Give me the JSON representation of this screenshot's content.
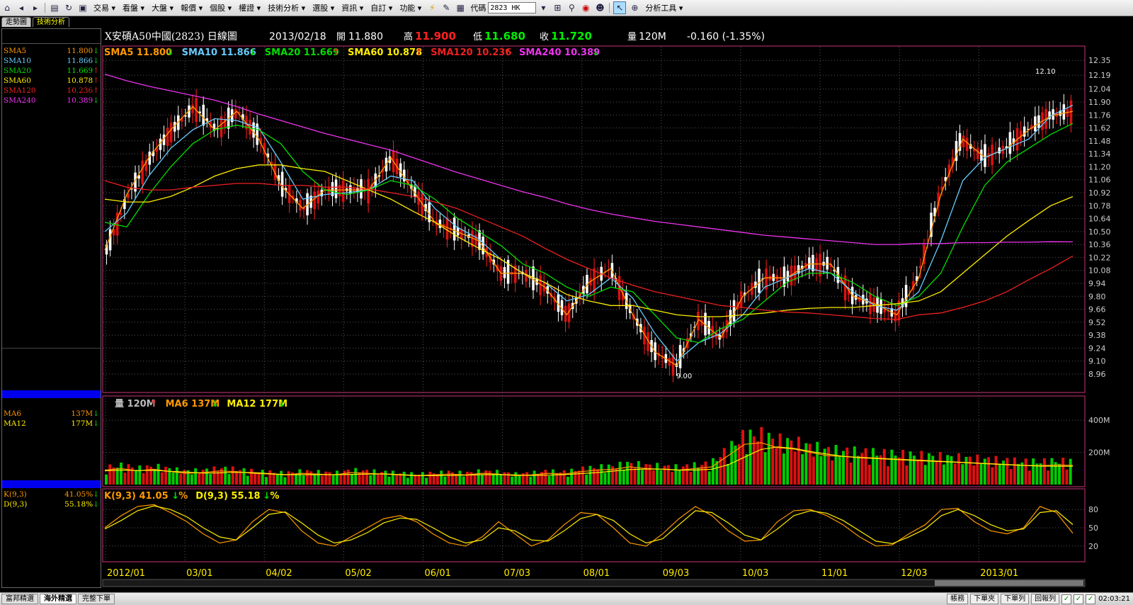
{
  "menu": {
    "items": [
      "交易",
      "看盤",
      "大盤",
      "報價",
      "個股",
      "權證",
      "技術分析",
      "選股",
      "資訊",
      "自訂",
      "功能"
    ],
    "code_label": "代碼",
    "code_value": "2823 HK",
    "tools_label": "分析工具"
  },
  "window_tabs": [
    "走勢圖",
    "技術分析"
  ],
  "header": {
    "title": "X安碩A50中國(2823)  日線圖",
    "date": "2013/02/18",
    "open_label": "開",
    "open": "11.880",
    "high_label": "高",
    "high": "11.900",
    "low_label": "低",
    "low": "11.680",
    "close_label": "收",
    "close": "11.720",
    "volume_label": "量",
    "volume": "120M",
    "change": "-0.160 (-1.35%)"
  },
  "left_panel": {
    "price_indicators": [
      {
        "name": "SMA5",
        "value": "11.800",
        "dir": "down",
        "color": "#ff9900"
      },
      {
        "name": "SMA10",
        "value": "11.866",
        "dir": "down",
        "color": "#66ccff"
      },
      {
        "name": "SMA20",
        "value": "11.669",
        "dir": "up",
        "color": "#00dd00"
      },
      {
        "name": "SMA60",
        "value": "10.878",
        "dir": "up",
        "color": "#ffee00"
      },
      {
        "name": "SMA120",
        "value": "10.236",
        "dir": "up",
        "color": "#ee2020"
      },
      {
        "name": "SMA240",
        "value": "10.389",
        "dir": "down",
        "color": "#ee33ee"
      }
    ],
    "volume_indicators": [
      {
        "name": "MA6",
        "value": "137M",
        "dir": "down",
        "color": "#ff9900"
      },
      {
        "name": "MA12",
        "value": "177M",
        "dir": "down",
        "color": "#ffee00"
      }
    ],
    "kd_indicators": [
      {
        "name": "K(9,3)",
        "value": "41.05%",
        "dir": "down",
        "color": "#ff9900"
      },
      {
        "name": "D(9,3)",
        "value": "55.18%",
        "dir": "down",
        "color": "#ffee00"
      }
    ]
  },
  "legend": {
    "price": [
      {
        "text": "SMA5 11.800",
        "dir": "down",
        "color": "#ff9900"
      },
      {
        "text": "SMA10 11.866",
        "dir": "down",
        "color": "#66ccff"
      },
      {
        "text": "SMA20 11.669",
        "dir": "up",
        "color": "#00dd00"
      },
      {
        "text": "SMA60 10.878",
        "dir": "up",
        "color": "#ffee00"
      },
      {
        "text": "SMA120 10.236",
        "dir": "up",
        "color": "#ee2020"
      },
      {
        "text": "SMA240 10.389",
        "dir": "down",
        "color": "#ee33ee"
      }
    ],
    "volume": [
      {
        "text": "量 120M",
        "dir": "up",
        "color": "#bbbbbb"
      },
      {
        "text": "MA6 137M",
        "dir": "down",
        "color": "#ff9900"
      },
      {
        "text": "MA12 177M",
        "dir": "down",
        "color": "#ffee00"
      }
    ],
    "kd": [
      {
        "text": "K(9,3) 41.05",
        "dir": "down",
        "suffix": "%",
        "color": "#ff9900"
      },
      {
        "text": "D(9,3) 55.18",
        "dir": "down",
        "suffix": "%",
        "color": "#ffee00"
      }
    ]
  },
  "chart_data": [
    {
      "type": "line",
      "panel": "price",
      "ylim": [
        8.96,
        12.39
      ],
      "y_ticks": [
        "12.35",
        "12.19",
        "12.04",
        "11.90",
        "11.76",
        "11.62",
        "11.48",
        "11.34",
        "11.20",
        "11.06",
        "10.92",
        "10.78",
        "10.64",
        "10.50",
        "10.36",
        "10.22",
        "10.08",
        "9.94",
        "9.80",
        "9.66",
        "9.52",
        "9.38",
        "9.24",
        "9.10",
        "8.96"
      ],
      "x_ticks": [
        "2012/01",
        "03/01",
        "04/02",
        "05/02",
        "06/01",
        "07/03",
        "08/01",
        "09/03",
        "10/03",
        "11/01",
        "12/03",
        "2013/01"
      ],
      "annotations": [
        {
          "text": "12.10",
          "near": "high"
        },
        {
          "text": "9.00",
          "near": "low"
        }
      ],
      "series": [
        {
          "name": "SMA5",
          "color": "#ff9900",
          "values": [
            10.3,
            10.9,
            11.3,
            11.6,
            11.85,
            11.6,
            11.8,
            11.5,
            11.0,
            10.75,
            10.95,
            10.95,
            10.95,
            11.3,
            10.95,
            10.6,
            10.5,
            10.4,
            10.05,
            10.05,
            9.9,
            9.6,
            9.95,
            10.1,
            9.6,
            9.2,
            9.05,
            9.55,
            9.35,
            9.8,
            10.0,
            10.0,
            10.15,
            10.15,
            9.8,
            9.72,
            9.6,
            10.0,
            10.9,
            11.5,
            11.3,
            11.4,
            11.6,
            11.75,
            11.8
          ]
        },
        {
          "name": "SMA10",
          "color": "#66ccff",
          "values": [
            10.5,
            10.7,
            11.1,
            11.4,
            11.6,
            11.72,
            11.7,
            11.62,
            11.25,
            10.85,
            10.9,
            10.92,
            10.95,
            11.1,
            11.05,
            10.75,
            10.55,
            10.42,
            10.2,
            10.05,
            9.95,
            9.75,
            9.82,
            10.0,
            9.78,
            9.4,
            9.1,
            9.3,
            9.4,
            9.6,
            9.9,
            10.0,
            10.1,
            10.05,
            9.85,
            9.7,
            9.65,
            9.85,
            10.4,
            11.05,
            11.3,
            11.4,
            11.5,
            11.75,
            11.866
          ]
        },
        {
          "name": "SMA20",
          "color": "#00dd00",
          "values": [
            10.6,
            10.55,
            10.9,
            11.2,
            11.45,
            11.6,
            11.65,
            11.6,
            11.45,
            11.15,
            10.95,
            10.9,
            10.95,
            11.05,
            11.0,
            10.85,
            10.65,
            10.5,
            10.35,
            10.15,
            10.05,
            9.9,
            9.8,
            9.9,
            9.85,
            9.6,
            9.35,
            9.3,
            9.45,
            9.55,
            9.75,
            9.95,
            10.05,
            10.05,
            9.95,
            9.8,
            9.7,
            9.8,
            10.05,
            10.55,
            11.0,
            11.25,
            11.4,
            11.55,
            11.669
          ]
        },
        {
          "name": "SMA60",
          "color": "#ffee00",
          "values": [
            10.85,
            10.82,
            10.82,
            10.88,
            10.98,
            11.1,
            11.18,
            11.22,
            11.22,
            11.18,
            11.15,
            11.05,
            10.95,
            10.85,
            10.72,
            10.6,
            10.45,
            10.32,
            10.2,
            10.05,
            9.95,
            9.82,
            9.75,
            9.7,
            9.7,
            9.65,
            9.6,
            9.58,
            9.58,
            9.6,
            9.62,
            9.65,
            9.67,
            9.68,
            9.68,
            9.7,
            9.72,
            9.75,
            9.85,
            10.05,
            10.25,
            10.45,
            10.62,
            10.78,
            10.878
          ]
        },
        {
          "name": "SMA120",
          "color": "#ee2020",
          "values": [
            11.05,
            10.98,
            10.95,
            10.95,
            10.98,
            11.0,
            11.02,
            11.02,
            11.0,
            11.0,
            10.98,
            10.98,
            10.96,
            10.92,
            10.88,
            10.82,
            10.75,
            10.65,
            10.55,
            10.45,
            10.32,
            10.2,
            10.1,
            10.0,
            9.92,
            9.85,
            9.8,
            9.75,
            9.7,
            9.68,
            9.65,
            9.63,
            9.62,
            9.6,
            9.58,
            9.56,
            9.55,
            9.6,
            9.62,
            9.68,
            9.75,
            9.85,
            9.98,
            10.1,
            10.236
          ]
        },
        {
          "name": "SMA240",
          "color": "#ee33ee",
          "values": [
            12.2,
            12.13,
            12.07,
            12.02,
            11.97,
            11.92,
            11.85,
            11.77,
            11.7,
            11.63,
            11.56,
            11.5,
            11.44,
            11.38,
            11.3,
            11.22,
            11.14,
            11.07,
            11.0,
            10.93,
            10.87,
            10.8,
            10.74,
            10.69,
            10.65,
            10.61,
            10.58,
            10.55,
            10.52,
            10.49,
            10.46,
            10.44,
            10.42,
            10.4,
            10.38,
            10.36,
            10.36,
            10.37,
            10.37,
            10.38,
            10.38,
            10.385,
            10.385,
            10.39,
            10.389
          ]
        }
      ]
    },
    {
      "type": "bar",
      "panel": "volume",
      "y_ticks": [
        "400M",
        "200M"
      ],
      "ylim": [
        0,
        480
      ],
      "values": [
        90,
        100,
        85,
        95,
        80,
        70,
        75,
        85,
        80,
        70,
        65,
        60,
        70,
        65,
        60,
        75,
        70,
        65,
        60,
        55,
        60,
        65,
        60,
        70,
        65,
        55,
        60,
        70,
        65,
        80,
        90,
        95,
        110,
        100,
        95,
        90,
        100,
        110,
        180,
        250,
        260,
        230,
        220,
        200,
        180,
        175,
        170,
        165,
        160,
        155,
        150,
        145,
        140,
        135,
        130,
        125,
        120,
        118,
        122,
        120
      ]
    },
    {
      "type": "line",
      "panel": "kd",
      "ylim": [
        0,
        100
      ],
      "y_ticks": [
        "80",
        "50",
        "20"
      ],
      "series": [
        {
          "name": "K(9,3)",
          "color": "#ff9900",
          "values": [
            50,
            70,
            85,
            88,
            75,
            60,
            40,
            25,
            30,
            60,
            80,
            75,
            45,
            25,
            20,
            35,
            50,
            65,
            70,
            60,
            40,
            25,
            20,
            35,
            60,
            40,
            20,
            30,
            55,
            75,
            72,
            50,
            25,
            20,
            40,
            65,
            85,
            70,
            45,
            28,
            30,
            60,
            78,
            80,
            70,
            55,
            35,
            20,
            22,
            40,
            55,
            80,
            82,
            60,
            45,
            40,
            50,
            85,
            75,
            41.05
          ]
        },
        {
          "name": "D(9,3)",
          "color": "#ffee00",
          "values": [
            48,
            62,
            78,
            86,
            80,
            68,
            50,
            35,
            30,
            50,
            72,
            76,
            58,
            38,
            25,
            30,
            42,
            58,
            66,
            64,
            50,
            35,
            25,
            30,
            50,
            45,
            30,
            28,
            45,
            65,
            72,
            62,
            40,
            25,
            32,
            55,
            78,
            75,
            58,
            38,
            30,
            48,
            70,
            78,
            74,
            62,
            45,
            28,
            24,
            35,
            48,
            70,
            80,
            70,
            55,
            45,
            48,
            75,
            78,
            55.18
          ]
        }
      ]
    }
  ],
  "bottom_bar": {
    "tabs": [
      "富邦精選",
      "海外精選",
      "完整下單"
    ],
    "buttons": [
      "帳務",
      "下單夾",
      "下單列",
      "回報列"
    ],
    "time": "02:03:21"
  }
}
